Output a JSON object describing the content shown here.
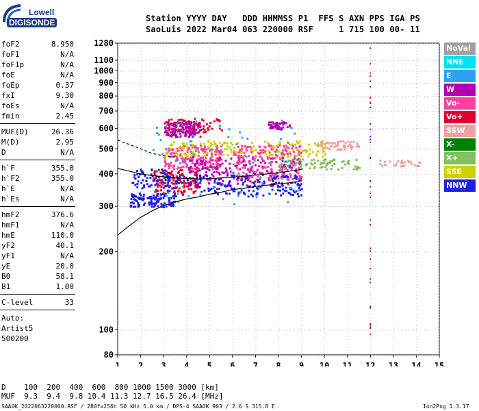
{
  "logo": {
    "line1": "Lowell",
    "line2": "DIGISONDE"
  },
  "header": {
    "line1": "Station YYYY DAY   DDD HHMMSS P1  FFS S AXN PPS IGA PS",
    "line2": "SaoLuis 2022 Mar04 063 220000 RSF     1 715 100 00- 11"
  },
  "params_a": [
    {
      "name": "foF2",
      "value": "8.950"
    },
    {
      "name": "foF1",
      "value": "N/A"
    },
    {
      "name": "foF1p",
      "value": "N/A"
    },
    {
      "name": "foE",
      "value": "N/A"
    },
    {
      "name": "foEp",
      "value": "0.37"
    },
    {
      "name": "fxI",
      "value": "9.30"
    },
    {
      "name": "foEs",
      "value": "N/A"
    },
    {
      "name": "fmin",
      "value": "2.45"
    }
  ],
  "params_b": [
    {
      "name": "MUF(D)",
      "value": "26.36"
    },
    {
      "name": "M(D)",
      "value": "2.95"
    },
    {
      "name": "D",
      "value": "N/A"
    }
  ],
  "params_c": [
    {
      "name": "h`F",
      "value": "355.0"
    },
    {
      "name": "h`F2",
      "value": "355.0"
    },
    {
      "name": "h`E",
      "value": "N/A"
    },
    {
      "name": "h`Es",
      "value": "N/A"
    }
  ],
  "params_d": [
    {
      "name": "hmF2",
      "value": "376.6"
    },
    {
      "name": "hmF1",
      "value": "N/A"
    },
    {
      "name": "hmE",
      "value": "110.0"
    },
    {
      "name": "yF2",
      "value": "40.1"
    },
    {
      "name": "yF1",
      "value": "N/A"
    },
    {
      "name": "yE",
      "value": "20.0"
    },
    {
      "name": "B0",
      "value": "58.1"
    },
    {
      "name": "B1",
      "value": "1.00"
    }
  ],
  "params_e": [
    {
      "name": "C-level",
      "value": "33"
    }
  ],
  "autoscale": {
    "line1": "Auto:",
    "line2": "Artist5",
    "line3": "500200"
  },
  "legend": [
    {
      "label": "NoVal",
      "color": "#a0a0a0"
    },
    {
      "label": "NNE",
      "color": "#00e0f0"
    },
    {
      "label": "E",
      "color": "#30a0f0"
    },
    {
      "label": "W",
      "color": "#b000b0"
    },
    {
      "label": "Vo-",
      "color": "#ff40a0"
    },
    {
      "label": "Vo+",
      "color": "#e00030"
    },
    {
      "label": "SSW",
      "color": "#f0a0a0"
    },
    {
      "label": "X-",
      "color": "#008000"
    },
    {
      "label": "X+",
      "color": "#80c060"
    },
    {
      "label": "SSE",
      "color": "#d0d000"
    },
    {
      "label": "NNW",
      "color": "#2020e0"
    }
  ],
  "footer": {
    "line1": "D    100  200  400  600  800 1000 1500 3000 [km]",
    "line2": "MUF  9.3  9.4  9.8 10.4 11.3 12.7 16.5 26.4 [MHz]",
    "line3": "SAA0K_2022063220000.RSF / 280fx256h 50 kHz 5.0 km / DPS-4 SAA0K 903 / 2.6 S 315.8 E",
    "version": "Ion2Png 1.3.17"
  },
  "chart_data": {
    "type": "scatter",
    "title": "",
    "xlabel": "",
    "ylabel": "",
    "xlim": [
      1,
      15
    ],
    "ylim": [
      80,
      1280
    ],
    "y_scale": "log",
    "x_ticks": [
      "1",
      "2",
      "3",
      "4",
      "5",
      "6",
      "7",
      "8",
      "9",
      "10",
      "11",
      "12",
      "13",
      "14",
      "15"
    ],
    "y_ticks": [
      "80",
      "100",
      "200",
      "300",
      "400",
      "500",
      "600",
      "700",
      "800",
      "900",
      "1000",
      "1100",
      "1280"
    ],
    "grid": true,
    "legend_position": "right",
    "traces": [
      {
        "name": "o-trace lower",
        "color": "#000000",
        "x": [
          1,
          1.5,
          2,
          2.5,
          3,
          3.5,
          4,
          4.5,
          5,
          5.5,
          6,
          6.5,
          7,
          7.5,
          8,
          8.5,
          9
        ],
        "y": [
          232,
          252,
          272,
          288,
          302,
          312,
          320,
          326,
          334,
          340,
          348,
          352,
          358,
          362,
          366,
          370,
          376
        ]
      },
      {
        "name": "o-trace dashed",
        "color": "#000000",
        "x": [
          1,
          1.5,
          2,
          2.5,
          3,
          3.5
        ],
        "y": [
          540,
          520,
          500,
          480,
          470,
          465
        ]
      },
      {
        "name": "x-trace",
        "color": "#000000",
        "x": [
          1,
          1.5,
          2,
          2.5,
          3,
          3.5,
          4,
          4.5,
          5,
          5.5,
          6,
          6.5,
          7,
          7.5,
          8,
          8.5,
          9
        ],
        "y": [
          420,
          410,
          400,
          394,
          390,
          386,
          384,
          382,
          384,
          386,
          388,
          392,
          396,
          400,
          404,
          410,
          416
        ]
      }
    ],
    "clusters": [
      {
        "color": "#b000b0",
        "x": [
          3,
          4.6
        ],
        "y": [
          560,
          640
        ],
        "n": 160
      },
      {
        "color": "#ff40a0",
        "x": [
          3,
          5.5
        ],
        "y": [
          420,
          520
        ],
        "n": 200
      },
      {
        "color": "#2020e0",
        "x": [
          1.5,
          3.5
        ],
        "y": [
          300,
          340
        ],
        "n": 120
      },
      {
        "color": "#e00030",
        "x": [
          2.5,
          4.5
        ],
        "y": [
          340,
          420
        ],
        "n": 140
      },
      {
        "color": "#d0d000",
        "x": [
          3,
          10
        ],
        "y": [
          470,
          540
        ],
        "n": 180
      },
      {
        "color": "#b000b0",
        "x": [
          4,
          9
        ],
        "y": [
          360,
          470
        ],
        "n": 220
      },
      {
        "color": "#ff40a0",
        "x": [
          6,
          9
        ],
        "y": [
          380,
          520
        ],
        "n": 180
      },
      {
        "color": "#2020e0",
        "x": [
          3,
          9
        ],
        "y": [
          330,
          400
        ],
        "n": 160
      },
      {
        "color": "#80c060",
        "x": [
          8,
          11.5
        ],
        "y": [
          420,
          460
        ],
        "n": 80
      },
      {
        "color": "#f0a0a0",
        "x": [
          9.5,
          11.5
        ],
        "y": [
          500,
          540
        ],
        "n": 60
      },
      {
        "color": "#30a0f0",
        "x": [
          2.5,
          9
        ],
        "y": [
          300,
          650
        ],
        "n": 80
      },
      {
        "color": "#b000b0",
        "x": [
          7.5,
          8.5
        ],
        "y": [
          600,
          640
        ],
        "n": 40
      },
      {
        "color": "#e00030",
        "x": [
          3,
          5.5
        ],
        "y": [
          580,
          660
        ],
        "n": 60
      },
      {
        "color": "#f0a0a0",
        "x": [
          12.2,
          14.2
        ],
        "y": [
          430,
          455
        ],
        "n": 30
      },
      {
        "color": "#2020e0",
        "x": [
          1.6,
          3.2
        ],
        "y": [
          355,
          420
        ],
        "n": 60
      }
    ]
  }
}
